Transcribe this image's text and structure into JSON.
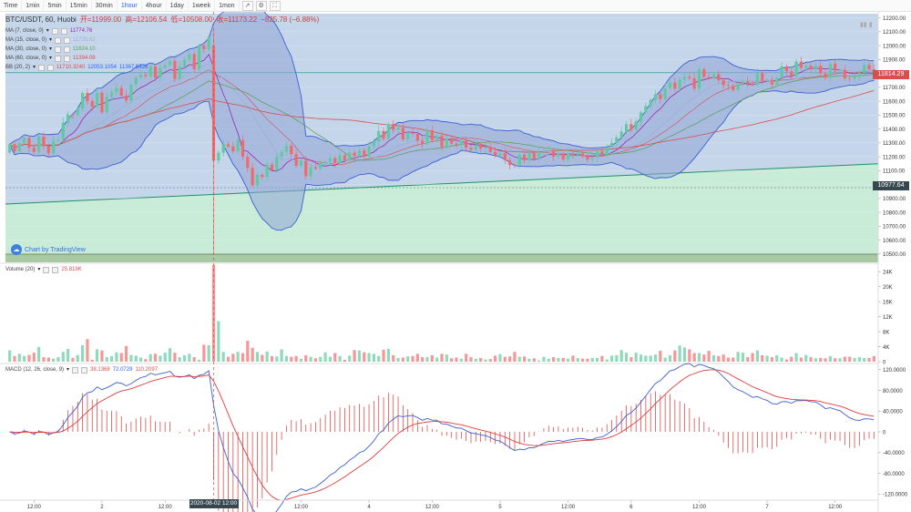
{
  "toolbar": {
    "timeframes": [
      "Time",
      "1min",
      "5min",
      "15min",
      "30min",
      "1hour",
      "4hour",
      "1day",
      "1week",
      "1mon"
    ],
    "active": "1hour",
    "icons": [
      "indicator-icon",
      "settings-icon",
      "fullscreen-icon"
    ]
  },
  "header": {
    "symbol": "BTC/USDT, 60, Huobi",
    "open": "开=11999.00",
    "high": "高=12106.54",
    "low": "低=10508.00",
    "close": "收=11173.22",
    "change": "−825.78 (−6.88%)"
  },
  "indicators": [
    {
      "name": "MA (7, close, 0)",
      "value": "11774.76",
      "color": "#9c27b0"
    },
    {
      "name": "MA (15, close, 0)",
      "value": "11735.62",
      "color": "#9bb0d8"
    },
    {
      "name": "MA (30, close, 0)",
      "value": "11624.10",
      "color": "#5fa05f"
    },
    {
      "name": "MA (60, close, 0)",
      "value": "11394.08",
      "color": "#d94e4e"
    },
    {
      "name": "BB (20, 2)",
      "values": [
        "11710.3240",
        "12053.1054",
        "11367.5426"
      ],
      "colors": [
        "#d94e4e",
        "#2962ff",
        "#2962ff"
      ]
    }
  ],
  "volume_legend": {
    "name": "Volume (20)",
    "value": "25.819K"
  },
  "macd_legend": {
    "name": "MACD (12, 26, close, 9)",
    "values": [
      "38.1368",
      "72.0729",
      "110.2097"
    ],
    "colors": [
      "#d94e4e",
      "#2962ff",
      "#d94e4e"
    ]
  },
  "price_tags": {
    "last": "11814.29",
    "ref": "10977.64"
  },
  "crosshair_date": "2020-08-02 12:00",
  "logo_text": "Chart by TradingView",
  "colors": {
    "up": "#5fc9a0",
    "down": "#ef6b6b",
    "bb_fill": "#8fa6d6",
    "bb_line": "#3d5fd0",
    "area_green": "#c9ecd9"
  },
  "chart_data": [
    {
      "type": "candlestick",
      "title": "BTC/USDT, 60, Huobi",
      "xlabel": "",
      "ylabel": "",
      "x_tick_labels": [
        "12:00",
        "2",
        "12:00",
        "3",
        "12:00",
        "4",
        "12:00",
        "5",
        "12:00",
        "6",
        "12:00",
        "7",
        "12:00"
      ],
      "y_tick_labels": [
        "10500.00",
        "10600.00",
        "10700.00",
        "10800.00",
        "10900.00",
        "11000.00",
        "11100.00",
        "11200.00",
        "11300.00",
        "11400.00",
        "11500.00",
        "11600.00",
        "11700.00",
        "11800.00",
        "11900.00",
        "12000.00",
        "12100.00",
        "12200.00"
      ],
      "ylim": [
        10440,
        12230
      ],
      "close": [
        11290,
        11240,
        11300,
        11335,
        11265,
        11235,
        11345,
        11275,
        11225,
        11315,
        11320,
        11445,
        11505,
        11500,
        11545,
        11660,
        11600,
        11560,
        11660,
        11520,
        11630,
        11665,
        11695,
        11640,
        11605,
        11720,
        11770,
        11790,
        11780,
        11850,
        11770,
        11840,
        11860,
        11890,
        11760,
        11850,
        11900,
        11940,
        11830,
        12000,
        11975,
        12060,
        11173,
        11230,
        11290,
        11275,
        11240,
        11320,
        11200,
        11120,
        10995,
        11070,
        11055,
        11145,
        11105,
        11200,
        11235,
        11280,
        11220,
        11135,
        11170,
        11060,
        11125,
        11115,
        11155,
        11165,
        11190,
        11155,
        11210,
        11175,
        11230,
        11205,
        11245,
        11200,
        11275,
        11310,
        11385,
        11330,
        11435,
        11395,
        11410,
        11325,
        11370,
        11365,
        11315,
        11290,
        11390,
        11320,
        11350,
        11270,
        11330,
        11295,
        11285,
        11315,
        11265,
        11250,
        11285,
        11260,
        11270,
        11235,
        11210,
        11225,
        11175,
        11140,
        11135,
        11215,
        11175,
        11225,
        11185,
        11235,
        11240,
        11245,
        11200,
        11225,
        11180,
        11225,
        11215,
        11225,
        11205,
        11180,
        11195,
        11240,
        11215,
        11270,
        11300,
        11340,
        11380,
        11435,
        11395,
        11455,
        11520,
        11565,
        11610,
        11650,
        11615,
        11695,
        11735,
        11690,
        11755,
        11775,
        11765,
        11690,
        11830,
        11775,
        11765,
        11795,
        11750,
        11715,
        11710,
        11680,
        11730,
        11745,
        11725,
        11720,
        11800,
        11745,
        11755,
        11720,
        11770,
        11850,
        11815,
        11780,
        11885,
        11840,
        11855,
        11830,
        11855,
        11800,
        11770,
        11870,
        11820,
        11825,
        11765,
        11760,
        11775,
        11805,
        11860,
        11830,
        11814
      ],
      "volume_k": [
        3.0,
        1.5,
        2.1,
        1.5,
        1.8,
        2.4,
        3.9,
        1.2,
        1.1,
        0.8,
        1.2,
        2.6,
        3.4,
        1.0,
        1.8,
        4.4,
        6.0,
        0.5,
        3.3,
        3.0,
        1.2,
        1.5,
        2.5,
        2.3,
        4.2,
        1.8,
        1.6,
        1.1,
        0.7,
        2.0,
        2.1,
        1.6,
        2.4,
        3.6,
        2.4,
        1.2,
        1.7,
        2.1,
        1.2,
        0.5,
        4.5,
        4.4,
        25.8,
        10.8,
        2.6,
        1.3,
        2.1,
        2.6,
        2.3,
        5.6,
        3.7,
        2.6,
        1.8,
        2.7,
        1.5,
        1.4,
        3.3,
        1.5,
        1.3,
        1.5,
        0.8,
        1.7,
        1.3,
        0.9,
        1.3,
        2.5,
        1.3,
        2.3,
        1.5,
        0.5,
        1.6,
        3.1,
        3.0,
        2.5,
        2.3,
        2.1,
        1.5,
        3.2,
        3.4,
        1.7,
        1.0,
        1.1,
        1.4,
        1.5,
        2.1,
        1.2,
        1.2,
        1.7,
        1.1,
        2.1,
        1.9,
        0.9,
        1.1,
        0.8,
        2.1,
        1.2,
        0.8,
        1.0,
        0.6,
        0.7,
        1.6,
        2.0,
        1.3,
        1.4,
        2.6,
        1.3,
        1.4,
        0.8,
        0.9,
        0.3,
        1.3,
        0.8,
        1.2,
        1.0,
        1.0,
        0.8,
        1.6,
        1.0,
        0.8,
        0.8,
        1.0,
        1.0,
        1.5,
        0.6,
        1.6,
        1.7,
        3.1,
        2.4,
        1.2,
        2.4,
        1.9,
        1.6,
        1.6,
        1.9,
        2.9,
        1.1,
        1.7,
        3.0,
        4.3,
        3.8,
        3.3,
        2.3,
        2.3,
        1.9,
        2.9,
        1.7,
        1.5,
        1.9,
        1.1,
        1.1,
        2.6,
        2.4,
        1.2,
        2.3,
        3.0,
        1.7,
        1.6,
        1.2,
        1.7,
        1.1,
        0.6,
        1.3,
        2.3,
        1.1,
        1.8,
        1.2,
        0.9,
        1.0,
        0.9,
        1.5,
        0.9,
        0.9,
        1.3,
        1.3,
        1.0,
        1.2,
        1.0,
        1.0,
        1.5
      ],
      "ma_periods": [
        7,
        15,
        30,
        60
      ],
      "bb": {
        "period": 20,
        "mult": 2
      }
    },
    {
      "type": "bar",
      "title": "Volume (20)",
      "y_tick_labels": [
        "0",
        "4K",
        "8K",
        "12K",
        "16K",
        "20K",
        "24K"
      ],
      "ylim": [
        0,
        26
      ]
    },
    {
      "type": "line",
      "title": "MACD (12, 26, close, 9)",
      "y_tick_labels": [
        "-120.0000",
        "-80.0000",
        "-40.0000",
        "0",
        "40.0000",
        "80.0000",
        "120.0000"
      ],
      "ylim": [
        -130,
        130
      ]
    }
  ]
}
